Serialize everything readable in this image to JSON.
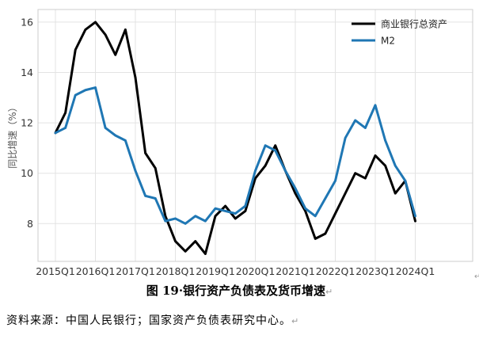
{
  "chart_data": {
    "type": "line",
    "ylabel": "同比增速（%）",
    "ylim": [
      6.5,
      16.5
    ],
    "yticks": [
      8,
      10,
      12,
      14,
      16
    ],
    "grid": true,
    "legend_position": "top-right",
    "x_tick_labels": [
      "2015Q1",
      "2016Q1",
      "2017Q1",
      "2018Q1",
      "2019Q1",
      "2020Q1",
      "2021Q1",
      "2022Q1",
      "2023Q1",
      "2024Q1"
    ],
    "x_count": 37,
    "series": [
      {
        "name": "商业银行总资产",
        "color": "#000000",
        "values": [
          11.6,
          12.4,
          14.9,
          15.7,
          16.0,
          15.5,
          14.7,
          15.7,
          13.8,
          10.8,
          10.2,
          8.3,
          7.3,
          6.9,
          7.3,
          6.8,
          8.3,
          8.7,
          8.2,
          8.5,
          9.8,
          10.3,
          11.1,
          10.1,
          9.2,
          8.5,
          7.4,
          7.6,
          8.4,
          9.2,
          10.0,
          9.8,
          10.7,
          10.3,
          9.2,
          9.7,
          8.1
        ]
      },
      {
        "name": "M2",
        "color": "#1f77b4",
        "values": [
          11.6,
          11.8,
          13.1,
          13.3,
          13.4,
          11.8,
          11.5,
          11.3,
          10.1,
          9.1,
          9.0,
          8.1,
          8.2,
          8.0,
          8.3,
          8.1,
          8.6,
          8.5,
          8.4,
          8.7,
          10.1,
          11.1,
          10.9,
          10.1,
          9.4,
          8.6,
          8.3,
          9.0,
          9.7,
          11.4,
          12.1,
          11.8,
          12.7,
          11.3,
          10.3,
          9.7,
          8.3
        ]
      }
    ]
  },
  "caption": "图 19·银行资产负债表及货币增速",
  "caption_mark": "↵",
  "source_note": "资料来源：中国人民银行；国家资产负债表研究中心。",
  "source_mark": "↵",
  "corner_mark": "↵"
}
